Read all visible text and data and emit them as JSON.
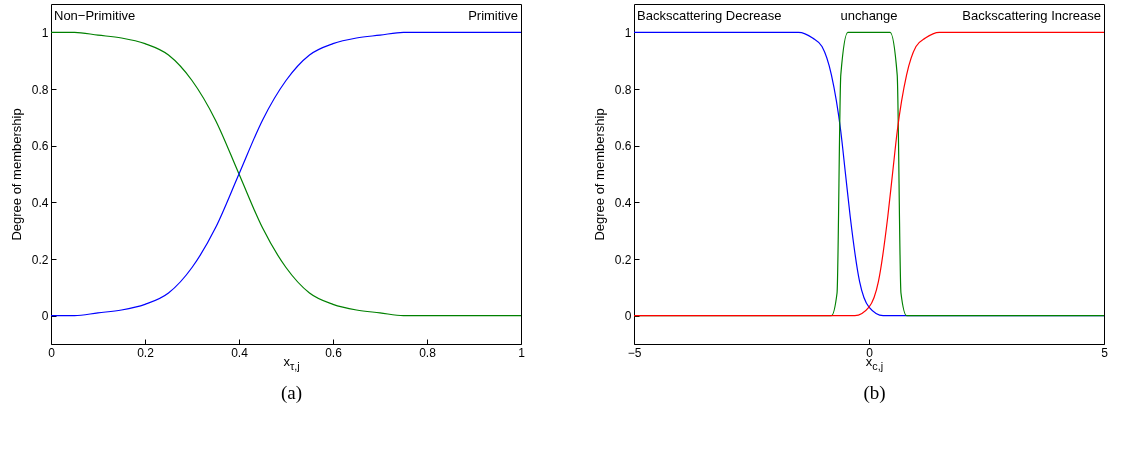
{
  "chart_data": [
    {
      "type": "line",
      "xlabel": "x$_{τ,j}$",
      "ylabel": "Degree of membership",
      "annotations": [
        "(a)"
      ],
      "xlim": [
        0,
        1
      ],
      "ylim": [
        -0.1,
        1.1
      ],
      "xticks": [
        0,
        0.2,
        0.4,
        0.6,
        0.8,
        1
      ],
      "yticks": [
        0,
        0.2,
        0.4,
        0.6,
        0.8,
        1
      ],
      "series": [
        {
          "name": "Non−Primitive",
          "color": "#008000",
          "x": [
            0,
            0.05,
            0.1,
            0.15,
            0.2,
            0.25,
            0.3,
            0.35,
            0.4,
            0.45,
            0.5,
            0.55,
            0.6,
            0.65,
            0.7,
            0.75,
            0.8,
            0.9,
            1
          ],
          "values": [
            1,
            1,
            0.99,
            0.98,
            0.96,
            0.92,
            0.83,
            0.69,
            0.5,
            0.31,
            0.17,
            0.08,
            0.04,
            0.02,
            0.01,
            0,
            0,
            0,
            0
          ]
        },
        {
          "name": "Primitive",
          "color": "#0000ff",
          "x": [
            0,
            0.05,
            0.1,
            0.15,
            0.2,
            0.25,
            0.3,
            0.35,
            0.4,
            0.45,
            0.5,
            0.55,
            0.6,
            0.65,
            0.7,
            0.75,
            0.8,
            0.9,
            1
          ],
          "values": [
            0,
            0,
            0.01,
            0.02,
            0.04,
            0.08,
            0.17,
            0.31,
            0.5,
            0.69,
            0.83,
            0.92,
            0.96,
            0.98,
            0.99,
            1,
            1,
            1,
            1
          ]
        }
      ]
    },
    {
      "type": "line",
      "xlabel": "x$_{c,j}$",
      "ylabel": "Degree of membership",
      "annotations": [
        "(b)"
      ],
      "xlim": [
        -5,
        5
      ],
      "ylim": [
        -0.1,
        1.1
      ],
      "xticks": [
        {
          "value": -5,
          "label": "−5"
        },
        0,
        5
      ],
      "yticks": [
        0,
        0.2,
        0.4,
        0.6,
        0.8,
        1
      ],
      "series": [
        {
          "name": "Backscattering Decrease",
          "color": "#0000ff",
          "x": [
            -5,
            -1.5,
            -1.2,
            -1,
            -0.8,
            -0.6,
            -0.5,
            -0.4,
            -0.2,
            0,
            0.3,
            5
          ],
          "values": [
            1,
            1,
            0.98,
            0.95,
            0.85,
            0.65,
            0.5,
            0.35,
            0.12,
            0.03,
            0,
            0
          ]
        },
        {
          "name": "unchange",
          "color": "#008000",
          "x": [
            -5,
            -0.8,
            -0.68,
            -0.6,
            -0.45,
            0.45,
            0.6,
            0.68,
            0.8,
            5
          ],
          "values": [
            0,
            0,
            0.08,
            0.85,
            1,
            1,
            0.85,
            0.08,
            0,
            0
          ]
        },
        {
          "name": "Backscattering Increase",
          "color": "#ff0000",
          "x": [
            -5,
            -0.3,
            0,
            0.2,
            0.4,
            0.5,
            0.6,
            0.8,
            1,
            1.2,
            1.5,
            5
          ],
          "values": [
            0,
            0,
            0.03,
            0.12,
            0.35,
            0.5,
            0.65,
            0.85,
            0.95,
            0.98,
            1,
            1
          ]
        }
      ]
    }
  ]
}
